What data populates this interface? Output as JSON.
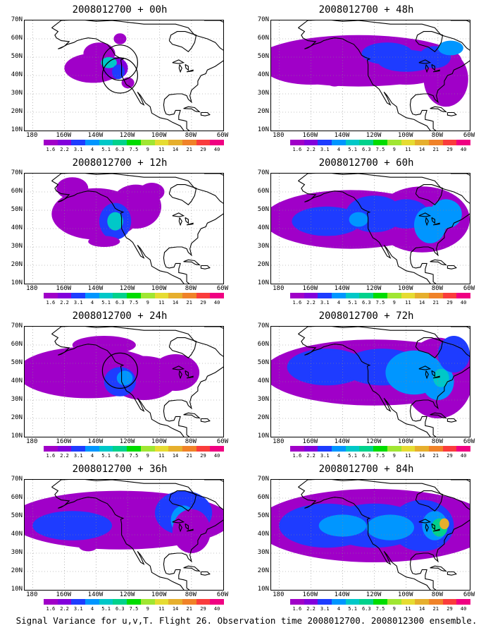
{
  "caption": "Signal Variance for u,v,T. Flight 26. Observation time 2008012700. 2008012300 ensemble.",
  "lat_labels": [
    "70N",
    "60N",
    "50N",
    "40N",
    "30N",
    "20N",
    "10N"
  ],
  "lon_labels": [
    "180",
    "160W",
    "140W",
    "120W",
    "100W",
    "80W",
    "60W"
  ],
  "colorbar": {
    "labels": [
      "1.6",
      "2.2",
      "3.1",
      "4",
      "5.1",
      "6.3",
      "7.5",
      "9",
      "11",
      "14",
      "21",
      "29",
      "40"
    ],
    "colors": [
      "#a000c8",
      "#8200dc",
      "#1e3cff",
      "#0096ff",
      "#00c8c8",
      "#00d28c",
      "#00dc00",
      "#a0e632",
      "#e6dc32",
      "#e6af2d",
      "#f08228",
      "#fa3c3c",
      "#f00082"
    ]
  },
  "panels": [
    {
      "title": "2008012700 + 00h",
      "level": 1,
      "circles": [
        [
          40,
          47
        ],
        [
          34,
          40
        ]
      ]
    },
    {
      "title": "2008012700 + 48h",
      "level": 3,
      "circles": []
    },
    {
      "title": "2008012700 + 12h",
      "level": 2,
      "circles": []
    },
    {
      "title": "2008012700 + 60h",
      "level": 4,
      "circles": []
    },
    {
      "title": "2008012700 + 24h",
      "level": 2,
      "circles": [
        [
          30,
          46
        ]
      ]
    },
    {
      "title": "2008012700 + 72h",
      "level": 5,
      "circles": []
    },
    {
      "title": "2008012700 + 36h",
      "level": 3,
      "circles": []
    },
    {
      "title": "2008012700 + 84h",
      "level": 6,
      "circles": []
    }
  ]
}
